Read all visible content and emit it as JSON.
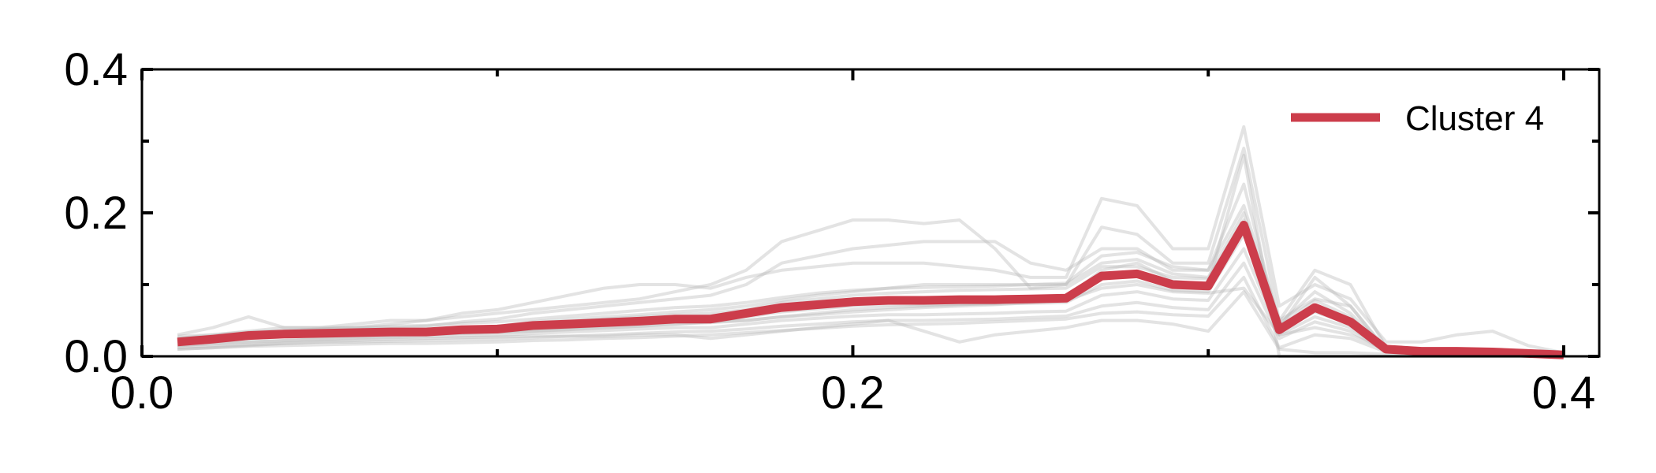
{
  "chart_data": {
    "type": "line",
    "title": "",
    "xlabel": "",
    "ylabel": "",
    "xlim": [
      0.0,
      0.41
    ],
    "ylim": [
      0.0,
      0.4
    ],
    "x_ticks": [
      {
        "value": 0.0,
        "label": "0.0"
      },
      {
        "value": 0.2,
        "label": "0.2"
      },
      {
        "value": 0.4,
        "label": "0.4"
      }
    ],
    "x_minor_ticks": [
      0.1,
      0.3
    ],
    "y_ticks": [
      {
        "value": 0.0,
        "label": "0.0"
      },
      {
        "value": 0.2,
        "label": "0.2"
      },
      {
        "value": 0.4,
        "label": "0.4"
      }
    ],
    "y_minor_ticks": [
      0.1,
      0.3
    ],
    "grid": false,
    "legend": {
      "position": "top-right",
      "entries": [
        "Cluster 4"
      ]
    },
    "x": [
      0.01,
      0.02,
      0.03,
      0.04,
      0.05,
      0.06,
      0.07,
      0.08,
      0.09,
      0.1,
      0.11,
      0.12,
      0.13,
      0.14,
      0.15,
      0.16,
      0.17,
      0.18,
      0.19,
      0.2,
      0.21,
      0.22,
      0.23,
      0.24,
      0.25,
      0.26,
      0.27,
      0.28,
      0.29,
      0.3,
      0.31,
      0.32,
      0.33,
      0.34,
      0.35,
      0.36,
      0.37,
      0.38,
      0.39,
      0.4
    ],
    "series": [
      {
        "name": "Cluster 4",
        "color": "#cc3d4b",
        "values": [
          0.02,
          0.024,
          0.029,
          0.031,
          0.032,
          0.033,
          0.034,
          0.034,
          0.037,
          0.038,
          0.043,
          0.045,
          0.047,
          0.049,
          0.052,
          0.052,
          0.06,
          0.068,
          0.072,
          0.076,
          0.078,
          0.078,
          0.079,
          0.079,
          0.08,
          0.081,
          0.112,
          0.115,
          0.1,
          0.098,
          0.183,
          0.037,
          0.068,
          0.048,
          0.01,
          0.007,
          0.007,
          0.006,
          0.004,
          0.002
        ]
      }
    ],
    "background_series_color": "#b9b9b9",
    "background_series": [
      {
        "values": [
          0.03,
          0.04,
          0.055,
          0.04,
          0.04,
          0.045,
          0.05,
          0.05,
          0.06,
          0.065,
          0.075,
          0.085,
          0.095,
          0.1,
          0.1,
          0.095,
          0.11,
          0.12,
          0.125,
          0.13,
          0.13,
          0.13,
          0.125,
          0.12,
          0.11,
          0.11,
          0.22,
          0.21,
          0.15,
          0.15,
          0.32,
          0.07,
          0.1,
          0.08,
          0.02,
          0.02,
          0.03,
          0.035,
          0.015,
          0.005
        ]
      },
      {
        "values": [
          0.025,
          0.03,
          0.035,
          0.04,
          0.04,
          0.04,
          0.045,
          0.05,
          0.055,
          0.06,
          0.065,
          0.07,
          0.075,
          0.08,
          0.09,
          0.1,
          0.12,
          0.16,
          0.175,
          0.19,
          0.19,
          0.185,
          0.19,
          0.15,
          0.095,
          0.1,
          0.18,
          0.17,
          0.13,
          0.13,
          0.29,
          0.05,
          0.08,
          0.07,
          0.01,
          0.008,
          0.008,
          0.008,
          0.005,
          0.003
        ]
      },
      {
        "values": [
          0.02,
          0.025,
          0.03,
          0.035,
          0.038,
          0.04,
          0.04,
          0.042,
          0.048,
          0.052,
          0.06,
          0.065,
          0.07,
          0.075,
          0.08,
          0.085,
          0.1,
          0.13,
          0.14,
          0.15,
          0.155,
          0.16,
          0.16,
          0.16,
          0.13,
          0.12,
          0.15,
          0.15,
          0.12,
          0.12,
          0.24,
          0.04,
          0.11,
          0.07,
          0.008,
          0.006,
          0.006,
          0.005,
          0.004,
          0.002
        ]
      },
      {
        "values": [
          0.025,
          0.028,
          0.032,
          0.033,
          0.034,
          0.035,
          0.036,
          0.036,
          0.04,
          0.042,
          0.048,
          0.052,
          0.055,
          0.058,
          0.062,
          0.065,
          0.07,
          0.078,
          0.085,
          0.09,
          0.095,
          0.1,
          0.1,
          0.1,
          0.1,
          0.1,
          0.13,
          0.135,
          0.115,
          0.11,
          0.2,
          0.045,
          0.09,
          0.06,
          0.01,
          0.008,
          0.007,
          0.006,
          0.004,
          0.002
        ]
      },
      {
        "values": [
          0.022,
          0.026,
          0.03,
          0.032,
          0.033,
          0.034,
          0.035,
          0.035,
          0.038,
          0.04,
          0.045,
          0.048,
          0.052,
          0.055,
          0.058,
          0.06,
          0.065,
          0.075,
          0.08,
          0.085,
          0.088,
          0.09,
          0.092,
          0.093,
          0.094,
          0.095,
          0.125,
          0.125,
          0.11,
          0.108,
          0.19,
          0.042,
          0.078,
          0.055,
          0.009,
          0.007,
          0.007,
          0.006,
          0.004,
          0.002
        ]
      },
      {
        "values": [
          0.018,
          0.022,
          0.026,
          0.028,
          0.029,
          0.03,
          0.03,
          0.031,
          0.033,
          0.034,
          0.038,
          0.04,
          0.043,
          0.045,
          0.048,
          0.048,
          0.055,
          0.062,
          0.066,
          0.07,
          0.072,
          0.072,
          0.073,
          0.073,
          0.074,
          0.075,
          0.1,
          0.105,
          0.092,
          0.09,
          0.17,
          0.035,
          0.062,
          0.045,
          0.009,
          0.006,
          0.006,
          0.005,
          0.004,
          0.002
        ]
      },
      {
        "values": [
          0.015,
          0.018,
          0.02,
          0.022,
          0.024,
          0.025,
          0.026,
          0.027,
          0.028,
          0.029,
          0.032,
          0.034,
          0.036,
          0.038,
          0.04,
          0.04,
          0.045,
          0.05,
          0.053,
          0.056,
          0.058,
          0.058,
          0.059,
          0.06,
          0.062,
          0.063,
          0.085,
          0.09,
          0.08,
          0.078,
          0.15,
          0.03,
          0.055,
          0.04,
          0.008,
          0.006,
          0.005,
          0.005,
          0.004,
          0.002
        ]
      },
      {
        "values": [
          0.012,
          0.014,
          0.016,
          0.018,
          0.02,
          0.02,
          0.021,
          0.022,
          0.023,
          0.024,
          0.026,
          0.028,
          0.03,
          0.032,
          0.034,
          0.035,
          0.038,
          0.042,
          0.045,
          0.048,
          0.05,
          0.05,
          0.051,
          0.052,
          0.054,
          0.056,
          0.07,
          0.075,
          0.068,
          0.065,
          0.13,
          0.025,
          0.048,
          0.035,
          0.007,
          0.005,
          0.005,
          0.004,
          0.003,
          0.002
        ]
      },
      {
        "values": [
          0.01,
          0.012,
          0.014,
          0.015,
          0.016,
          0.017,
          0.018,
          0.018,
          0.019,
          0.02,
          0.022,
          0.023,
          0.025,
          0.026,
          0.028,
          0.03,
          0.033,
          0.036,
          0.039,
          0.042,
          0.044,
          0.045,
          0.046,
          0.048,
          0.05,
          0.052,
          0.06,
          0.062,
          0.058,
          0.056,
          0.11,
          0.012,
          0.03,
          0.025,
          0.006,
          0.004,
          0.004,
          0.004,
          0.003,
          0.002
        ]
      },
      {
        "values": [
          0.02,
          0.022,
          0.025,
          0.027,
          0.028,
          0.029,
          0.03,
          0.031,
          0.032,
          0.033,
          0.035,
          0.037,
          0.04,
          0.042,
          0.045,
          0.047,
          0.05,
          0.055,
          0.06,
          0.065,
          0.068,
          0.07,
          0.072,
          0.074,
          0.078,
          0.082,
          0.12,
          0.13,
          0.105,
          0.1,
          0.28,
          0.0,
          0.0,
          0.0,
          0.0,
          0.0,
          0.0,
          0.0,
          0.0,
          0.0
        ]
      },
      {
        "values": [
          0.015,
          0.017,
          0.02,
          0.022,
          0.024,
          0.026,
          0.028,
          0.03,
          0.032,
          0.034,
          0.036,
          0.038,
          0.04,
          0.042,
          0.045,
          0.048,
          0.05,
          0.055,
          0.058,
          0.062,
          0.065,
          0.068,
          0.07,
          0.072,
          0.075,
          0.078,
          0.095,
          0.1,
          0.09,
          0.088,
          0.095,
          0.03,
          0.04,
          0.03,
          0.01,
          0.008,
          0.008,
          0.007,
          0.005,
          0.003
        ]
      },
      {
        "values": [
          0.01,
          0.012,
          0.015,
          0.018,
          0.02,
          0.022,
          0.024,
          0.025,
          0.026,
          0.027,
          0.028,
          0.028,
          0.028,
          0.03,
          0.03,
          0.025,
          0.03,
          0.035,
          0.04,
          0.045,
          0.05,
          0.035,
          0.02,
          0.03,
          0.035,
          0.04,
          0.05,
          0.05,
          0.045,
          0.035,
          0.09,
          0.01,
          0.005,
          0.005,
          0.003,
          0.003,
          0.003,
          0.003,
          0.002,
          0.001
        ]
      },
      {
        "values": [
          0.028,
          0.03,
          0.034,
          0.036,
          0.038,
          0.04,
          0.042,
          0.043,
          0.046,
          0.048,
          0.052,
          0.056,
          0.06,
          0.064,
          0.068,
          0.07,
          0.075,
          0.082,
          0.088,
          0.092,
          0.095,
          0.096,
          0.097,
          0.098,
          0.1,
          0.102,
          0.14,
          0.145,
          0.125,
          0.12,
          0.21,
          0.05,
          0.12,
          0.1,
          0.012,
          0.01,
          0.009,
          0.008,
          0.005,
          0.003
        ]
      }
    ]
  }
}
